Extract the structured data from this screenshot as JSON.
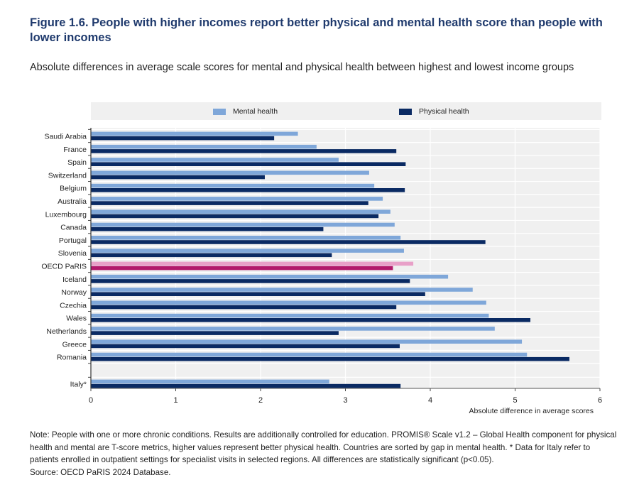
{
  "header": {
    "title": "Figure 1.6. People with higher incomes report better physical and mental health score than people with lower incomes",
    "subtitle": "Absolute differences in average scale scores for mental and physical health between highest and lowest income groups"
  },
  "colors": {
    "mental": "#7fa7d9",
    "physical": "#0a2a63",
    "mental_highlight": "#e8a0c8",
    "physical_highlight": "#b2196b",
    "plot_bg": "#f0f0f0",
    "grid": "#ffffff"
  },
  "chart_data": {
    "type": "bar",
    "orientation": "horizontal",
    "title": "Figure 1.6. People with higher incomes report better physical and mental health score than people with lower incomes",
    "subtitle": "Absolute differences in average scale scores for mental and physical health between highest and lowest income groups",
    "xlabel": "Absolute difference in average scores",
    "ylabel": "",
    "xlim": [
      0,
      6
    ],
    "xticks": [
      "0",
      "1",
      "2",
      "3",
      "4",
      "5",
      "6"
    ],
    "grid": true,
    "legend_position": "top",
    "highlight_category": "OECD PaRIS",
    "separated_category": "Italy*",
    "categories": [
      "Saudi Arabia",
      "France",
      "Spain",
      "Switzerland",
      "Belgium",
      "Australia",
      "Luxembourg",
      "Canada",
      "Portugal",
      "Slovenia",
      "OECD PaRIS",
      "Iceland",
      "Norway",
      "Czechia",
      "Wales",
      "Netherlands",
      "Greece",
      "Romania",
      "Italy*"
    ],
    "series": [
      {
        "name": "Mental health",
        "values": [
          2.44,
          2.66,
          2.92,
          3.28,
          3.34,
          3.44,
          3.53,
          3.58,
          3.65,
          3.69,
          3.8,
          4.21,
          4.5,
          4.66,
          4.69,
          4.76,
          5.08,
          5.14,
          2.81
        ]
      },
      {
        "name": "Physical health",
        "values": [
          2.16,
          3.6,
          3.71,
          2.05,
          3.7,
          3.27,
          3.39,
          2.74,
          4.65,
          2.84,
          3.56,
          3.76,
          3.94,
          3.6,
          5.18,
          2.92,
          3.64,
          5.64,
          3.65
        ]
      }
    ]
  },
  "legend": {
    "mental_label": "Mental health",
    "physical_label": "Physical health"
  },
  "footer": {
    "note": "Note: People with one or more chronic conditions. Results are additionally controlled for education. PROMIS® Scale v1.2 – Global Health component for physical health and mental are T-score metrics, higher values represent better physical health. Countries are sorted by gap in mental health. * Data for Italy refer to patients enrolled in outpatient settings for specialist visits in selected regions. All differences are statistically significant (p<0.05).",
    "source": "Source: OECD PaRIS 2024 Database."
  }
}
